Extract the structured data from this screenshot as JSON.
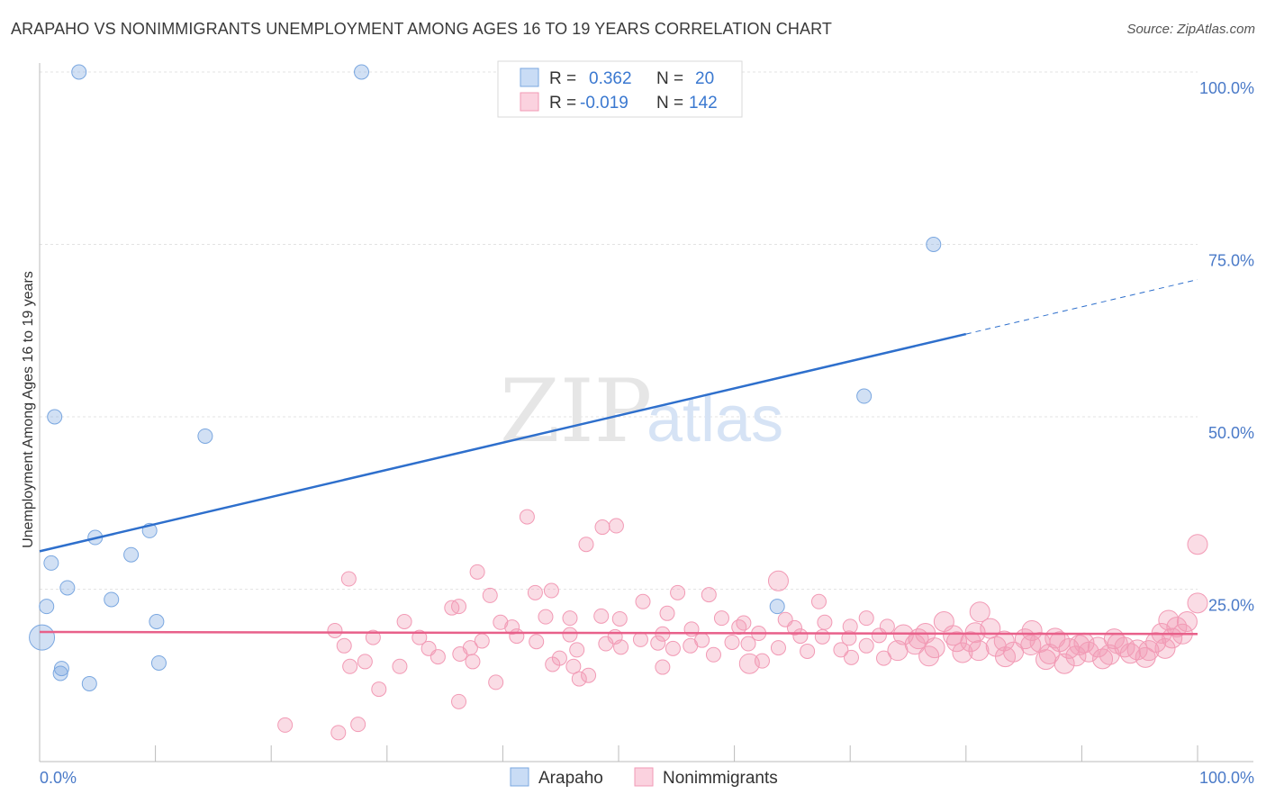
{
  "header": {
    "title": "ARAPAHO VS NONIMMIGRANTS UNEMPLOYMENT AMONG AGES 16 TO 19 YEARS CORRELATION CHART",
    "source": "Source: ZipAtlas.com"
  },
  "watermark": {
    "zip": "ZIP",
    "atlas": "atlas"
  },
  "chart_data": {
    "type": "scatter",
    "title": "ARAPAHO VS NONIMMIGRANTS UNEMPLOYMENT AMONG AGES 16 TO 19 YEARS CORRELATION CHART",
    "xlabel": "",
    "ylabel": "Unemployment Among Ages 16 to 19 years",
    "xlim": [
      0,
      100
    ],
    "ylim": [
      0,
      100
    ],
    "x_tick_labels": [
      "0.0%",
      "100.0%"
    ],
    "y_tick_labels": [
      "25.0%",
      "50.0%",
      "75.0%",
      "100.0%"
    ],
    "y_tick_values": [
      25,
      50,
      75,
      100
    ],
    "grid": true,
    "legend_position": "top-center",
    "colors": {
      "arapaho": "#7aa7e0",
      "nonimmigrants": "#f29ab5",
      "arapaho_line": "#2e6fcc",
      "nonimmigrants_line": "#e8608a"
    },
    "stats": [
      {
        "series": "Arapaho",
        "r_label": "R =",
        "r": "0.362",
        "n_label": "N =",
        "n": "20"
      },
      {
        "series": "Nonimmigrants",
        "r_label": "R =",
        "r": "-0.019",
        "n_label": "N =",
        "n": "142"
      }
    ],
    "series": [
      {
        "name": "Arapaho",
        "trend": {
          "x0": 0,
          "y0": 30.5,
          "x1": 80,
          "y1": 62.0,
          "dashed_to_x": 100,
          "dashed_to_y": 69.9
        },
        "points": [
          [
            3.4,
            100,
            8
          ],
          [
            27.8,
            100,
            8
          ],
          [
            77.2,
            75,
            8
          ],
          [
            71.2,
            53,
            8
          ],
          [
            1.3,
            50,
            8
          ],
          [
            14.3,
            47.2,
            8
          ],
          [
            4.8,
            32.5,
            8
          ],
          [
            9.5,
            33.5,
            8
          ],
          [
            7.9,
            30,
            8
          ],
          [
            1.0,
            28.8,
            8
          ],
          [
            2.4,
            25.2,
            8
          ],
          [
            6.2,
            23.5,
            8
          ],
          [
            0.6,
            22.5,
            8
          ],
          [
            10.1,
            20.3,
            8
          ],
          [
            63.7,
            22.5,
            8
          ],
          [
            10.3,
            14.3,
            8
          ],
          [
            1.9,
            13.5,
            8
          ],
          [
            1.8,
            12.8,
            8
          ],
          [
            4.3,
            11.3,
            8
          ],
          [
            0.2,
            18,
            14
          ]
        ]
      },
      {
        "name": "Nonimmigrants",
        "trend": {
          "x0": 0,
          "y0": 18.8,
          "x1": 100,
          "y1": 18.5
        },
        "points": [
          [
            42.1,
            35.5,
            8
          ],
          [
            49.8,
            34.2,
            8
          ],
          [
            48.6,
            34,
            8
          ],
          [
            47.2,
            31.5,
            8
          ],
          [
            100,
            31.5,
            11
          ],
          [
            37.8,
            27.5,
            8
          ],
          [
            26.7,
            26.5,
            8
          ],
          [
            63.8,
            26.2,
            11
          ],
          [
            44.2,
            24.8,
            8
          ],
          [
            42.8,
            24.5,
            8
          ],
          [
            38.9,
            24.1,
            8
          ],
          [
            52.1,
            23.2,
            8
          ],
          [
            36.2,
            22.5,
            8
          ],
          [
            67.3,
            23.2,
            8
          ],
          [
            100,
            23,
            11
          ],
          [
            55.1,
            24.5,
            8
          ],
          [
            57.8,
            24.2,
            8
          ],
          [
            50.1,
            20.7,
            8
          ],
          [
            54.2,
            21.5,
            8
          ],
          [
            58.9,
            20.8,
            8
          ],
          [
            43.7,
            21,
            8
          ],
          [
            45.8,
            20.8,
            8
          ],
          [
            31.5,
            20.3,
            8
          ],
          [
            39.8,
            20.2,
            8
          ],
          [
            48.5,
            21.1,
            8
          ],
          [
            56.3,
            19.2,
            8
          ],
          [
            65.2,
            19.4,
            8
          ],
          [
            60.4,
            19.5,
            8
          ],
          [
            70,
            19.6,
            8
          ],
          [
            73.2,
            19.6,
            8
          ],
          [
            81.2,
            21.7,
            11
          ],
          [
            97.5,
            20.5,
            11
          ],
          [
            67.8,
            20.2,
            8
          ],
          [
            82.1,
            19.3,
            11
          ],
          [
            85.7,
            19,
            11
          ],
          [
            25.5,
            19,
            8
          ],
          [
            28.8,
            18,
            8
          ],
          [
            32.8,
            18,
            8
          ],
          [
            41.2,
            18.2,
            8
          ],
          [
            45.8,
            18.4,
            8
          ],
          [
            49.7,
            18.1,
            8
          ],
          [
            53.8,
            18.5,
            8
          ],
          [
            57.2,
            17.6,
            8
          ],
          [
            59.8,
            17.3,
            8
          ],
          [
            62.1,
            18.6,
            8
          ],
          [
            65.7,
            18.2,
            8
          ],
          [
            69.9,
            17.9,
            8
          ],
          [
            72.5,
            18.3,
            8
          ],
          [
            74.6,
            18.4,
            11
          ],
          [
            76.5,
            18.6,
            11
          ],
          [
            78.9,
            18.3,
            11
          ],
          [
            80.4,
            17.4,
            11
          ],
          [
            83.3,
            17.5,
            11
          ],
          [
            86.4,
            17.3,
            11
          ],
          [
            88.1,
            17.4,
            11
          ],
          [
            89.8,
            16.9,
            11
          ],
          [
            91.4,
            16.6,
            11
          ],
          [
            93.1,
            17.1,
            11
          ],
          [
            94.8,
            16.2,
            11
          ],
          [
            96.4,
            17.3,
            11
          ],
          [
            97.8,
            17.9,
            11
          ],
          [
            98.7,
            18.5,
            11
          ],
          [
            26.3,
            16.8,
            8
          ],
          [
            33.6,
            16.4,
            8
          ],
          [
            37.2,
            16.5,
            8
          ],
          [
            42.9,
            17.4,
            8
          ],
          [
            46.4,
            16.2,
            8
          ],
          [
            50.2,
            16.6,
            8
          ],
          [
            53.4,
            17.2,
            8
          ],
          [
            56.2,
            16.8,
            8
          ],
          [
            61.2,
            17.1,
            8
          ],
          [
            63.8,
            16.5,
            8
          ],
          [
            66.3,
            16,
            8
          ],
          [
            69.2,
            16.2,
            8
          ],
          [
            71.4,
            16.8,
            8
          ],
          [
            74.1,
            16.1,
            11
          ],
          [
            75.6,
            17,
            11
          ],
          [
            77.3,
            16.5,
            11
          ],
          [
            79.2,
            17.4,
            11
          ],
          [
            81.1,
            16.1,
            11
          ],
          [
            84.1,
            15.9,
            11
          ],
          [
            85.6,
            16.9,
            11
          ],
          [
            87.2,
            15.6,
            11
          ],
          [
            88.9,
            16.4,
            11
          ],
          [
            90.6,
            15.9,
            11
          ],
          [
            92.4,
            15.5,
            11
          ],
          [
            94.2,
            15.7,
            11
          ],
          [
            95.8,
            16.1,
            11
          ],
          [
            97.2,
            16.4,
            11
          ],
          [
            34.4,
            15.2,
            8
          ],
          [
            36.3,
            15.6,
            8
          ],
          [
            58.2,
            15.5,
            8
          ],
          [
            62.4,
            14.6,
            8
          ],
          [
            70.1,
            15.1,
            8
          ],
          [
            72.9,
            15,
            8
          ],
          [
            76.8,
            15.3,
            11
          ],
          [
            79.7,
            15.8,
            11
          ],
          [
            83.4,
            15.2,
            11
          ],
          [
            86.9,
            14.8,
            11
          ],
          [
            89.5,
            15.3,
            11
          ],
          [
            91.8,
            14.9,
            11
          ],
          [
            95.5,
            15.1,
            11
          ],
          [
            26.8,
            13.8,
            8
          ],
          [
            37.4,
            14.5,
            8
          ],
          [
            44.3,
            14.1,
            8
          ],
          [
            46.1,
            13.8,
            8
          ],
          [
            53.8,
            13.7,
            8
          ],
          [
            61.3,
            14.2,
            11
          ],
          [
            88.5,
            14.2,
            11
          ],
          [
            29.3,
            10.5,
            8
          ],
          [
            36.2,
            8.7,
            8
          ],
          [
            39.4,
            11.5,
            8
          ],
          [
            46.6,
            12,
            8
          ],
          [
            47.4,
            12.5,
            8
          ],
          [
            21.2,
            5.3,
            8
          ],
          [
            25.8,
            4.2,
            8
          ],
          [
            27.5,
            5.4,
            8
          ],
          [
            28.1,
            14.5,
            8
          ],
          [
            31.1,
            13.8,
            8
          ],
          [
            35.6,
            22.3,
            8
          ],
          [
            38.2,
            17.5,
            8
          ],
          [
            40.8,
            19.5,
            8
          ],
          [
            44.9,
            15,
            8
          ],
          [
            48.9,
            17.1,
            8
          ],
          [
            51.9,
            17.7,
            8
          ],
          [
            54.7,
            16.4,
            8
          ],
          [
            60.8,
            20.1,
            8
          ],
          [
            64.4,
            20.6,
            8
          ],
          [
            67.6,
            18.1,
            8
          ],
          [
            71.4,
            20.8,
            8
          ],
          [
            75.9,
            17.8,
            11
          ],
          [
            78.1,
            20.3,
            11
          ],
          [
            80.8,
            18.7,
            11
          ],
          [
            82.6,
            16.7,
            11
          ],
          [
            85.1,
            17.8,
            11
          ],
          [
            87.7,
            17.9,
            11
          ],
          [
            90.2,
            17.2,
            11
          ],
          [
            93.7,
            16.6,
            11
          ],
          [
            96.9,
            18.6,
            11
          ],
          [
            98.2,
            19.5,
            11
          ],
          [
            99.1,
            20.3,
            11
          ],
          [
            92.8,
            17.8,
            11
          ]
        ]
      }
    ]
  }
}
